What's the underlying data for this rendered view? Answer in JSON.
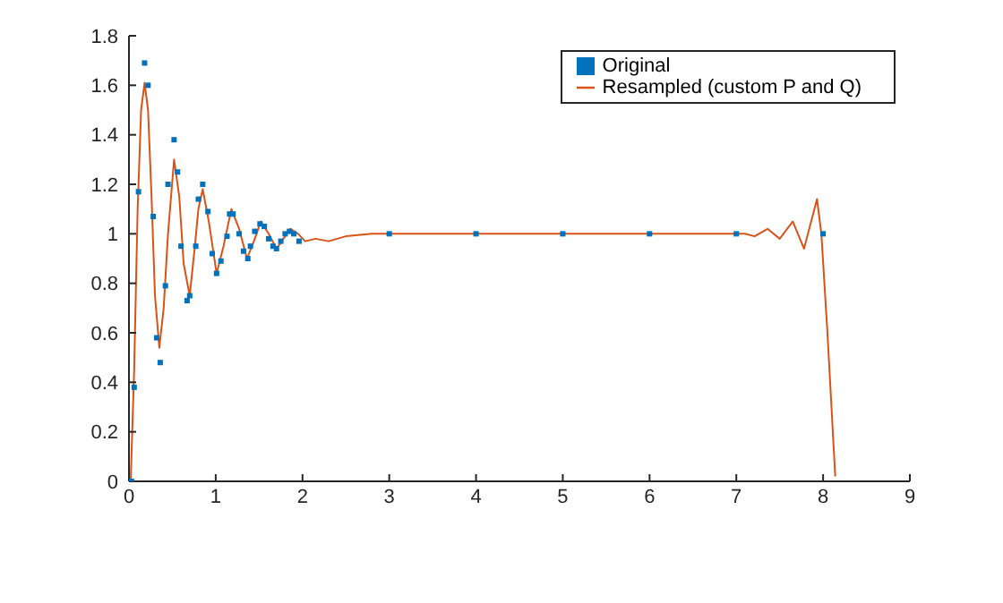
{
  "chart_data": {
    "type": "scatter",
    "series": [
      {
        "name": "Original",
        "marker": "square",
        "color": "#0072bd",
        "x": [
          0.03,
          0.06,
          0.11,
          0.18,
          0.22,
          0.28,
          0.32,
          0.36,
          0.42,
          0.45,
          0.52,
          0.56,
          0.6,
          0.67,
          0.7,
          0.77,
          0.8,
          0.85,
          0.91,
          0.96,
          1.01,
          1.06,
          1.13,
          1.16,
          1.2,
          1.27,
          1.32,
          1.37,
          1.4,
          1.45,
          1.51,
          1.56,
          1.61,
          1.66,
          1.7,
          1.75,
          1.8,
          1.85,
          1.9,
          1.96,
          3,
          4,
          5,
          6,
          7,
          8
        ],
        "values": [
          0,
          0.38,
          1.17,
          1.69,
          1.6,
          1.07,
          0.58,
          0.48,
          0.79,
          1.2,
          1.38,
          1.25,
          0.95,
          0.73,
          0.75,
          0.95,
          1.14,
          1.2,
          1.09,
          0.92,
          0.84,
          0.89,
          0.99,
          1.08,
          1.08,
          1.0,
          0.93,
          0.9,
          0.95,
          1.01,
          1.04,
          1.03,
          0.98,
          0.95,
          0.94,
          0.97,
          1.0,
          1.01,
          1.0,
          0.97,
          1,
          1,
          1,
          1,
          1,
          1
        ]
      },
      {
        "name": "Resampled (custom P and Q)",
        "type": "line",
        "marker": "none",
        "color": "#d95319",
        "x": [
          0.02,
          0.06,
          0.1,
          0.14,
          0.18,
          0.22,
          0.26,
          0.3,
          0.35,
          0.4,
          0.45,
          0.52,
          0.58,
          0.63,
          0.7,
          0.76,
          0.8,
          0.85,
          0.92,
          1.01,
          1.09,
          1.18,
          1.27,
          1.36,
          1.44,
          1.52,
          1.61,
          1.7,
          1.78,
          1.86,
          1.95,
          2.03,
          2.15,
          2.3,
          2.5,
          2.8,
          3,
          4,
          5,
          6,
          7,
          7.1,
          7.21,
          7.36,
          7.5,
          7.65,
          7.78,
          7.93,
          7.98,
          8.05,
          8.14
        ],
        "values": [
          0,
          0.45,
          1.1,
          1.5,
          1.61,
          1.5,
          1.15,
          0.75,
          0.54,
          0.7,
          1.0,
          1.3,
          1.15,
          0.88,
          0.75,
          0.95,
          1.1,
          1.18,
          1.05,
          0.84,
          0.95,
          1.1,
          1.02,
          0.9,
          0.97,
          1.05,
          1.0,
          0.94,
          0.98,
          1.02,
          1.0,
          0.97,
          0.98,
          0.97,
          0.99,
          1.0,
          1.0,
          1.0,
          1.0,
          1.0,
          1.0,
          1.0,
          0.99,
          1.02,
          0.98,
          1.05,
          0.94,
          1.14,
          1.0,
          0.6,
          0.02
        ]
      }
    ],
    "xlim": [
      0,
      9
    ],
    "xticks": [
      0,
      1,
      2,
      3,
      4,
      5,
      6,
      7,
      8,
      9
    ],
    "ylim": [
      0,
      1.8
    ],
    "yticks": [
      0,
      0.2,
      0.4,
      0.6,
      0.8,
      1,
      1.2,
      1.4,
      1.6,
      1.8
    ],
    "grid": false,
    "legend": "top right"
  }
}
